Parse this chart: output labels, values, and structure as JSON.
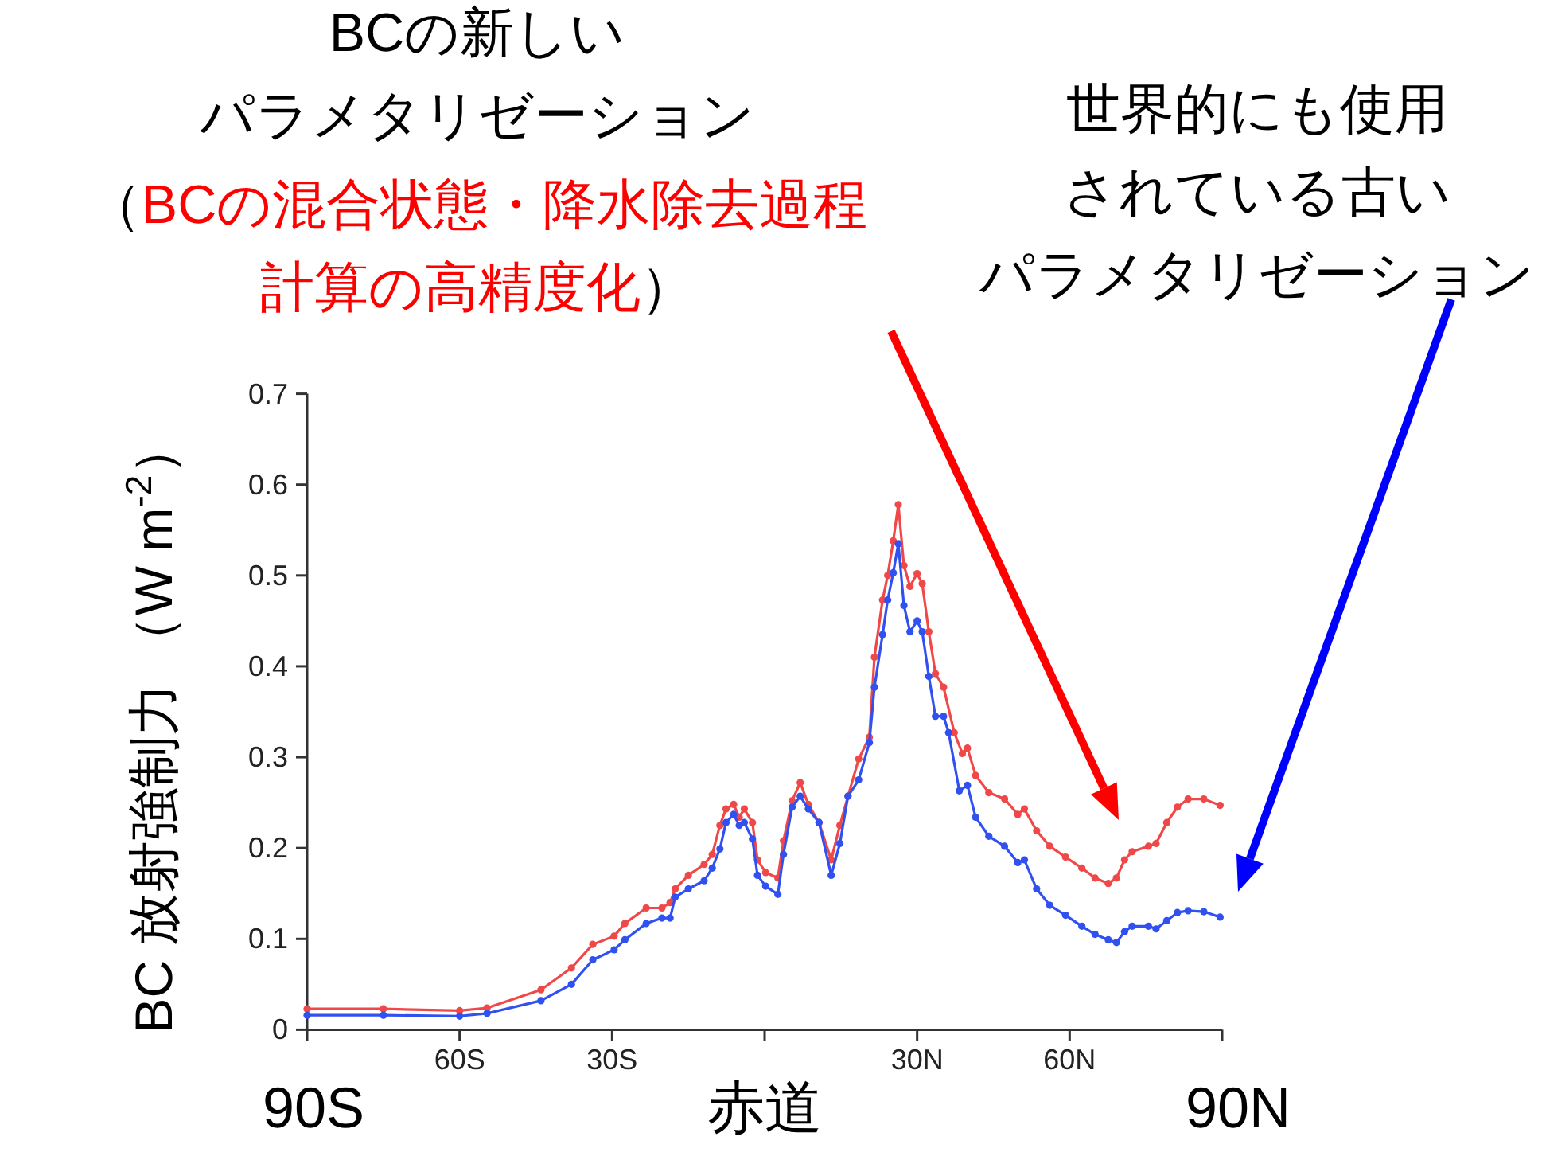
{
  "chart_data": {
    "type": "line",
    "ylabel": "BC 放射強制力 （W m$^{-2}$）",
    "xlabel": "赤道",
    "xlim": [
      -90,
      90
    ],
    "ylim": [
      0,
      0.7
    ],
    "xticks": [
      {
        "value": -90,
        "label": null
      },
      {
        "value": -60,
        "label": "60S"
      },
      {
        "value": -30,
        "label": "30S"
      },
      {
        "value": 0,
        "label": null
      },
      {
        "value": 30,
        "label": "30N"
      },
      {
        "value": 60,
        "label": "60N"
      },
      {
        "value": 90,
        "label": null
      }
    ],
    "yticks": [
      0,
      0.1,
      0.2,
      0.3,
      0.4,
      0.5,
      0.6,
      0.7
    ],
    "marker": "circle",
    "line_style": "solid",
    "series": [
      {
        "color": "#f04848",
        "x": [
          -90,
          -75,
          -60,
          -54.6,
          -44,
          -38,
          -33.8,
          -29.6,
          -27.5,
          -23.3,
          -20.2,
          -18.6,
          -17.6,
          -15,
          -11.9,
          -10.3,
          -8.8,
          -7.6,
          -6.1,
          -5,
          -4,
          -2.4,
          -1.4,
          0.2,
          2.6,
          3.7,
          5.4,
          7.0,
          8.6,
          10.7,
          13.1,
          14.8,
          16.4,
          18.5,
          20.6,
          21.6,
          23.2,
          24.2,
          25.3,
          26.3,
          27.4,
          28.6,
          30.0,
          31.0,
          32.3,
          33.6,
          35.2,
          37.3,
          38.9,
          39.9,
          41.5,
          44.1,
          47.2,
          49.8,
          51.1,
          53.5,
          56.1,
          59.2,
          62.4,
          65.0,
          67.6,
          69.2,
          70.8,
          72.3,
          75.5,
          77.0,
          79.1,
          81.2,
          83.3,
          86.4,
          89.6
        ],
        "values": [
          0.023,
          0.023,
          0.021,
          0.024,
          0.044,
          0.068,
          0.094,
          0.103,
          0.117,
          0.134,
          0.134,
          0.14,
          0.155,
          0.17,
          0.182,
          0.193,
          0.225,
          0.243,
          0.248,
          0.234,
          0.243,
          0.228,
          0.187,
          0.173,
          0.167,
          0.208,
          0.252,
          0.272,
          0.248,
          0.228,
          0.187,
          0.225,
          0.257,
          0.298,
          0.322,
          0.41,
          0.473,
          0.5,
          0.538,
          0.578,
          0.511,
          0.488,
          0.502,
          0.491,
          0.438,
          0.392,
          0.377,
          0.327,
          0.304,
          0.31,
          0.28,
          0.261,
          0.254,
          0.237,
          0.243,
          0.219,
          0.202,
          0.19,
          0.178,
          0.167,
          0.161,
          0.167,
          0.187,
          0.196,
          0.202,
          0.205,
          0.228,
          0.245,
          0.254,
          0.254,
          0.247
        ]
      },
      {
        "color": "#3050f0",
        "x": [
          -90,
          -75,
          -60,
          -54.6,
          -44,
          -38,
          -33.8,
          -29.6,
          -27.5,
          -23.3,
          -20.2,
          -18.6,
          -17.6,
          -15,
          -11.9,
          -10.3,
          -8.8,
          -7.6,
          -6.1,
          -5,
          -4,
          -2.4,
          -1.4,
          0.2,
          2.6,
          3.7,
          5.4,
          7.0,
          8.6,
          10.7,
          13.1,
          14.8,
          16.4,
          18.5,
          20.6,
          21.6,
          23.2,
          24.2,
          25.3,
          26.3,
          27.4,
          28.6,
          30.0,
          31.0,
          32.3,
          33.6,
          35.2,
          36.2,
          38.3,
          39.9,
          41.5,
          44.1,
          47.2,
          49.8,
          51.1,
          53.5,
          56.1,
          59.2,
          62.4,
          65.0,
          67.6,
          69.2,
          70.8,
          72.3,
          75.5,
          77.0,
          79.1,
          81.2,
          83.3,
          86.4,
          89.6
        ],
        "values": [
          0.016,
          0.016,
          0.015,
          0.018,
          0.032,
          0.05,
          0.077,
          0.088,
          0.099,
          0.117,
          0.123,
          0.123,
          0.146,
          0.155,
          0.164,
          0.178,
          0.199,
          0.228,
          0.237,
          0.225,
          0.228,
          0.21,
          0.17,
          0.158,
          0.149,
          0.193,
          0.245,
          0.257,
          0.243,
          0.228,
          0.17,
          0.205,
          0.257,
          0.275,
          0.316,
          0.377,
          0.435,
          0.473,
          0.503,
          0.535,
          0.467,
          0.438,
          0.45,
          0.438,
          0.389,
          0.345,
          0.345,
          0.327,
          0.263,
          0.269,
          0.234,
          0.213,
          0.202,
          0.184,
          0.187,
          0.155,
          0.137,
          0.126,
          0.114,
          0.105,
          0.099,
          0.096,
          0.108,
          0.114,
          0.114,
          0.111,
          0.12,
          0.129,
          0.131,
          0.13,
          0.124
        ]
      }
    ],
    "annotations": [
      "BCの新しいパラメタリゼーション",
      "（BCの混合状態・降水除去過程計算の高精度化）",
      "世界的にも使用されている古いパラメタリゼーション",
      "90S",
      "90N"
    ]
  }
}
